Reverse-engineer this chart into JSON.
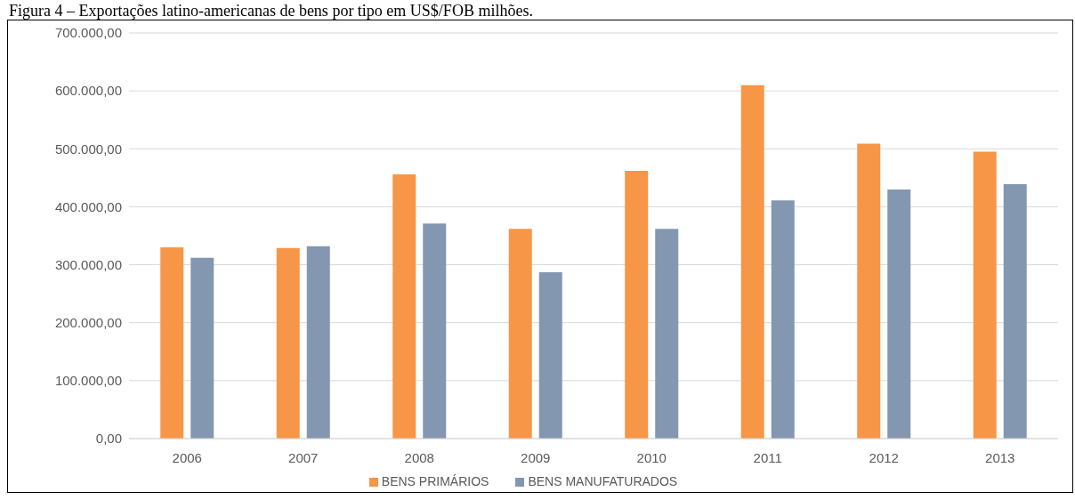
{
  "chart_data": {
    "type": "bar",
    "title": "Figura 4 – Exportações latino-americanas de bens por tipo em US$/FOB milhões.",
    "categories": [
      "2006",
      "2007",
      "2008",
      "2009",
      "2010",
      "2011",
      "2012",
      "2013"
    ],
    "series": [
      {
        "name": "BENS PRIMÁRIOS",
        "color": "#f79646",
        "values": [
          330000,
          329000,
          456000,
          362000,
          462000,
          610000,
          509000,
          495000
        ]
      },
      {
        "name": "BENS MANUFATURADOS",
        "color": "#8497b0",
        "values": [
          312000,
          332000,
          371000,
          287000,
          362000,
          411000,
          430000,
          439000
        ]
      }
    ],
    "ylim": [
      0,
      700000
    ],
    "yticks": [
      {
        "value": 0,
        "label": "0,00"
      },
      {
        "value": 100000,
        "label": "100.000,00"
      },
      {
        "value": 200000,
        "label": "200.000,00"
      },
      {
        "value": 300000,
        "label": "300.000,00"
      },
      {
        "value": 400000,
        "label": "400.000,00"
      },
      {
        "value": 500000,
        "label": "500.000,00"
      },
      {
        "value": 600000,
        "label": "600.000,00"
      },
      {
        "value": 700000,
        "label": "700.000,00"
      }
    ],
    "grid": "y",
    "legend": "bottom"
  }
}
